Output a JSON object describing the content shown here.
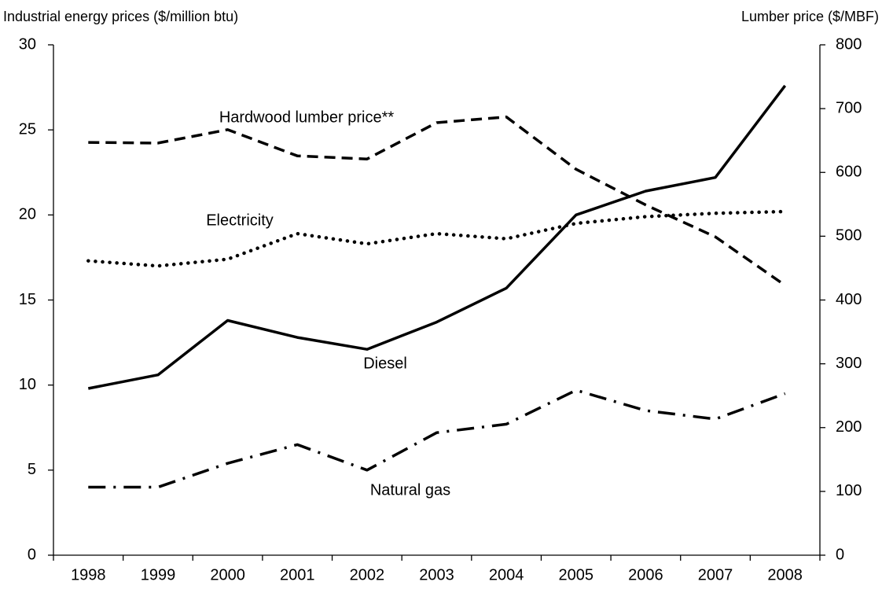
{
  "chart_data": {
    "type": "line",
    "y_label": "Industrial energy prices ($/million btu)",
    "y2_label": "Lumber price ($/MBF)",
    "categories": [
      "1998",
      "1999",
      "2000",
      "2001",
      "2002",
      "2003",
      "2004",
      "2005",
      "2006",
      "2007",
      "2008"
    ],
    "ylim": [
      0,
      30
    ],
    "yticks": [
      0,
      5,
      10,
      15,
      20,
      25,
      30
    ],
    "y2lim": [
      0,
      800
    ],
    "y2ticks": [
      0,
      100,
      200,
      300,
      400,
      500,
      600,
      700,
      800
    ],
    "grid": false,
    "series": [
      {
        "name": "Hardwood lumber price**",
        "color": "#000000",
        "style": "dashed",
        "axis": "y2",
        "values": [
          647,
          646,
          667,
          626,
          621,
          678,
          687,
          605,
          549,
          499,
          423
        ]
      },
      {
        "name": "Electricity",
        "color": "#000000",
        "style": "dotted",
        "values": [
          17.3,
          17.0,
          17.4,
          18.9,
          18.3,
          18.9,
          18.6,
          19.5,
          19.9,
          20.1,
          20.2
        ]
      },
      {
        "name": "Diesel",
        "color": "#000000",
        "style": "solid",
        "values": [
          9.8,
          10.6,
          13.8,
          12.8,
          12.1,
          13.7,
          15.7,
          20.0,
          21.4,
          22.2,
          27.6
        ]
      },
      {
        "name": "Natural gas",
        "color": "#000000",
        "style": "dashdot",
        "values": [
          4.0,
          4.0,
          5.4,
          6.5,
          5.0,
          7.2,
          7.7,
          9.7,
          8.5,
          8.0,
          9.5
        ]
      }
    ]
  }
}
